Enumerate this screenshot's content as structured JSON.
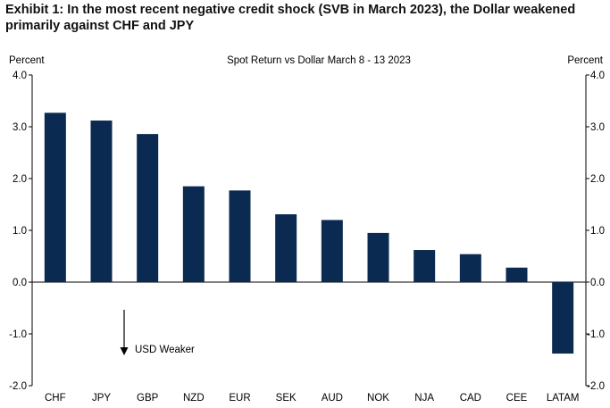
{
  "exhibit_title": "Exhibit 1: In the most recent negative credit shock (SVB in March 2023), the Dollar weakened primarily against CHF and JPY",
  "chart_data": {
    "type": "bar",
    "title": "Spot Return vs Dollar March 8 - 13 2023",
    "ylabel_left": "Percent",
    "ylabel_right": "Percent",
    "categories": [
      "CHF",
      "JPY",
      "GBP",
      "NZD",
      "EUR",
      "SEK",
      "AUD",
      "NOK",
      "NJA",
      "CAD",
      "CEE",
      "LATAM"
    ],
    "values": [
      3.27,
      3.12,
      2.86,
      1.85,
      1.77,
      1.31,
      1.2,
      0.95,
      0.62,
      0.54,
      0.28,
      -1.38
    ],
    "ylim": [
      -2.0,
      4.0
    ],
    "yticks": [
      4.0,
      3.0,
      2.0,
      1.0,
      0.0,
      -1.0,
      -2.0
    ],
    "ytick_labels": [
      "4.0",
      "3.0",
      "2.0",
      "1.0",
      "0.0",
      "-1.0",
      "-2.0"
    ],
    "bar_color": "#0b2a52",
    "annotation": "USD Weaker",
    "grid": false,
    "legend": "none"
  }
}
